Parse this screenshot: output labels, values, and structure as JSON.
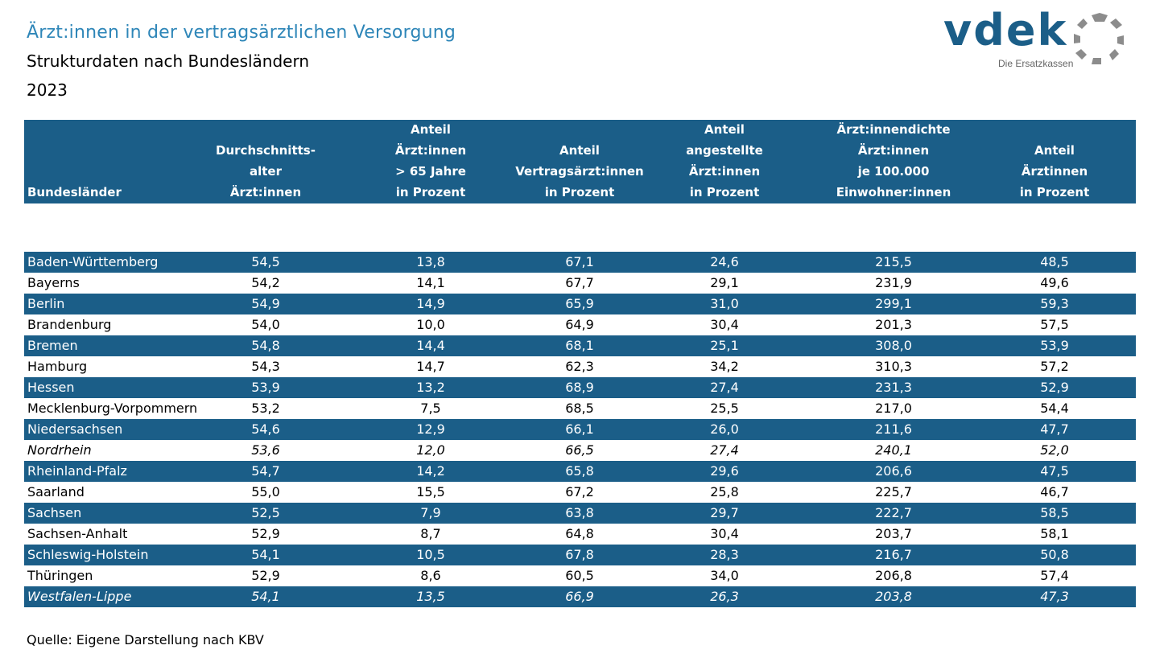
{
  "title": "Ärzt:innen in der vertragsärztlichen Versorgung",
  "subtitle": "Strukturdaten nach Bundesländern",
  "year": "2023",
  "logo": {
    "word": "vdek",
    "tagline": "Die Ersatzkassen",
    "ring_color": "#8c8c8c",
    "brand_color": "#1b5e88"
  },
  "header": {
    "col0": [
      "Bundesländer"
    ],
    "col1": [
      "Durchschnitts-",
      "alter",
      "Ärzt:innen"
    ],
    "col2": [
      "Anteil",
      "Ärzt:innen",
      "> 65 Jahre",
      "in Prozent"
    ],
    "col3": [
      "Anteil",
      "Vertragsärzt:innen",
      "in Prozent"
    ],
    "col4": [
      "Anteil",
      "angestellte",
      "Ärzt:innen",
      "in Prozent"
    ],
    "col5": [
      "Ärzt:innendichte",
      "Ärzt:innen",
      "je 100.000",
      "Einwohner:innen"
    ],
    "col6": [
      "Anteil",
      "Ärztinnen",
      "in Prozent"
    ]
  },
  "rows": [
    {
      "name": "Baden-Württemberg",
      "values": [
        "54,5",
        "13,8",
        "67,1",
        "24,6",
        "215,5",
        "48,5"
      ]
    },
    {
      "name": "Bayerns",
      "values": [
        "54,2",
        "14,1",
        "67,7",
        "29,1",
        "231,9",
        "49,6"
      ]
    },
    {
      "name": "Berlin",
      "values": [
        "54,9",
        "14,9",
        "65,9",
        "31,0",
        "299,1",
        "59,3"
      ]
    },
    {
      "name": "Brandenburg",
      "values": [
        "54,0",
        "10,0",
        "64,9",
        "30,4",
        "201,3",
        "57,5"
      ]
    },
    {
      "name": "Bremen",
      "values": [
        "54,8",
        "14,4",
        "68,1",
        "25,1",
        "308,0",
        "53,9"
      ]
    },
    {
      "name": "Hamburg",
      "values": [
        "54,3",
        "14,7",
        "62,3",
        "34,2",
        "310,3",
        "57,2"
      ]
    },
    {
      "name": "Hessen",
      "values": [
        "53,9",
        "13,2",
        "68,9",
        "27,4",
        "231,3",
        "52,9"
      ]
    },
    {
      "name": "Mecklenburg-Vorpommern",
      "values": [
        "53,2",
        "7,5",
        "68,5",
        "25,5",
        "217,0",
        "54,4"
      ]
    },
    {
      "name": "Niedersachsen",
      "values": [
        "54,6",
        "12,9",
        "66,1",
        "26,0",
        "211,6",
        "47,7"
      ]
    },
    {
      "name": "Nordrhein",
      "values": [
        "53,6",
        "12,0",
        "66,5",
        "27,4",
        "240,1",
        "52,0"
      ],
      "italic": true
    },
    {
      "name": "Rheinland-Pfalz",
      "values": [
        "54,7",
        "14,2",
        "65,8",
        "29,6",
        "206,6",
        "47,5"
      ]
    },
    {
      "name": "Saarland",
      "values": [
        "55,0",
        "15,5",
        "67,2",
        "25,8",
        "225,7",
        "46,7"
      ]
    },
    {
      "name": "Sachsen",
      "values": [
        "52,5",
        "7,9",
        "63,8",
        "29,7",
        "222,7",
        "58,5"
      ]
    },
    {
      "name": "Sachsen-Anhalt",
      "values": [
        "52,9",
        "8,7",
        "64,8",
        "30,4",
        "203,7",
        "58,1"
      ]
    },
    {
      "name": "Schleswig-Holstein",
      "values": [
        "54,1",
        "10,5",
        "67,8",
        "28,3",
        "216,7",
        "50,8"
      ]
    },
    {
      "name": "Thüringen",
      "values": [
        "52,9",
        "8,6",
        "60,5",
        "34,0",
        "206,8",
        "57,4"
      ]
    },
    {
      "name": "Westfalen-Lippe",
      "values": [
        "54,1",
        "13,5",
        "66,9",
        "26,3",
        "203,8",
        "47,3"
      ],
      "italic": true
    }
  ],
  "footer": "Quelle: Eigene Darstellung nach KBV"
}
